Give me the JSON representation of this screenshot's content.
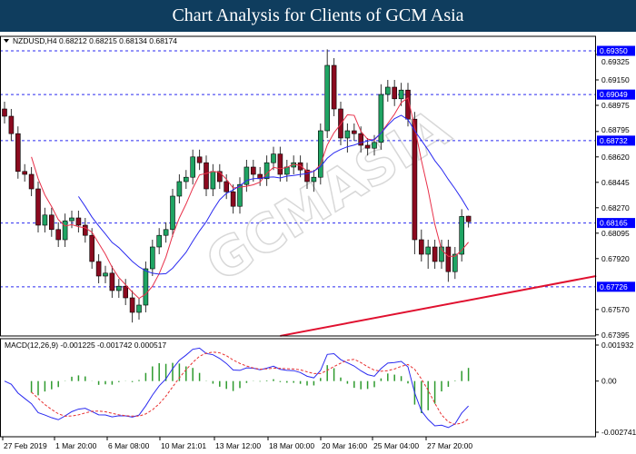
{
  "header": {
    "title": "Chart Analysis for Clients of GCM Asia"
  },
  "watermark": "GCMASIA",
  "chart_data": {
    "type": "candlestick",
    "symbol_info": "NZDUSD,H4  0.68212 0.68215 0.68134 0.68174",
    "colors": {
      "bull": "#1fa463",
      "bear": "#8b0a1f",
      "ma_fast": "#e8314a",
      "ma_slow": "#2a2af0",
      "level": "#2a2af0",
      "trendline": "#e0102f",
      "macd_hist": "#2e9a2e",
      "macd_signal": "#e83030"
    },
    "price_ticks": [
      "0.69325",
      "0.69150",
      "0.68975",
      "0.68795",
      "0.68620",
      "0.68445",
      "0.68270",
      "0.68095",
      "0.67920",
      "0.67570",
      "0.67395"
    ],
    "levels": [
      "0.69350",
      "0.69049",
      "0.68732",
      "0.68165",
      "0.67726"
    ],
    "trendline": {
      "from_index": 41,
      "from_price": 0.67388,
      "to_index": 88,
      "to_price": 0.678
    },
    "x_labels": [
      "27 Feb 2019",
      "1 Mar 20:00",
      "6 Mar 08:00",
      "10 Mar 21:01",
      "13 Mar 12:00",
      "18 Mar 00:00",
      "20 Mar 16:00",
      "25 Mar 04:00",
      "27 Mar 20:00"
    ],
    "ohlc": [
      [
        0.6895,
        0.69,
        0.6885,
        0.689
      ],
      [
        0.689,
        0.6895,
        0.6873,
        0.6878
      ],
      [
        0.6878,
        0.6883,
        0.6847,
        0.6852
      ],
      [
        0.6852,
        0.6857,
        0.6845,
        0.685
      ],
      [
        0.685,
        0.6855,
        0.6835,
        0.684
      ],
      [
        0.684,
        0.6845,
        0.681,
        0.6815
      ],
      [
        0.6815,
        0.6827,
        0.681,
        0.6822
      ],
      [
        0.6822,
        0.6827,
        0.6807,
        0.6812
      ],
      [
        0.6812,
        0.6817,
        0.68,
        0.6805
      ],
      [
        0.6805,
        0.6823,
        0.68,
        0.6818
      ],
      [
        0.6818,
        0.6825,
        0.6813,
        0.682
      ],
      [
        0.682,
        0.6825,
        0.681,
        0.6815
      ],
      [
        0.6815,
        0.682,
        0.6803,
        0.6808
      ],
      [
        0.6808,
        0.6813,
        0.6785,
        0.679
      ],
      [
        0.679,
        0.6795,
        0.6775,
        0.678
      ],
      [
        0.678,
        0.6787,
        0.6775,
        0.6782
      ],
      [
        0.6782,
        0.6787,
        0.6765,
        0.677
      ],
      [
        0.677,
        0.6778,
        0.6765,
        0.6773
      ],
      [
        0.6773,
        0.6778,
        0.676,
        0.6765
      ],
      [
        0.6765,
        0.677,
        0.6748,
        0.6755
      ],
      [
        0.6755,
        0.6765,
        0.675,
        0.676
      ],
      [
        0.676,
        0.679,
        0.6755,
        0.6785
      ],
      [
        0.6785,
        0.6805,
        0.678,
        0.68
      ],
      [
        0.68,
        0.6813,
        0.6795,
        0.6808
      ],
      [
        0.6808,
        0.6817,
        0.6803,
        0.6812
      ],
      [
        0.6812,
        0.684,
        0.6807,
        0.6835
      ],
      [
        0.6835,
        0.685,
        0.683,
        0.6845
      ],
      [
        0.6845,
        0.6853,
        0.684,
        0.6848
      ],
      [
        0.6848,
        0.6867,
        0.6843,
        0.6862
      ],
      [
        0.6862,
        0.6867,
        0.6853,
        0.6858
      ],
      [
        0.6858,
        0.6863,
        0.6835,
        0.684
      ],
      [
        0.684,
        0.6857,
        0.6835,
        0.6852
      ],
      [
        0.6852,
        0.6857,
        0.684,
        0.6845
      ],
      [
        0.6845,
        0.685,
        0.6833,
        0.6838
      ],
      [
        0.6838,
        0.6843,
        0.6823,
        0.6828
      ],
      [
        0.6828,
        0.6848,
        0.6823,
        0.6843
      ],
      [
        0.6843,
        0.686,
        0.6838,
        0.6855
      ],
      [
        0.6855,
        0.686,
        0.6845,
        0.685
      ],
      [
        0.685,
        0.6855,
        0.6842,
        0.6847
      ],
      [
        0.6847,
        0.6863,
        0.6842,
        0.6858
      ],
      [
        0.6858,
        0.6869,
        0.6853,
        0.6864
      ],
      [
        0.6864,
        0.6869,
        0.6845,
        0.685
      ],
      [
        0.685,
        0.686,
        0.6845,
        0.6855
      ],
      [
        0.6855,
        0.6863,
        0.685,
        0.6858
      ],
      [
        0.6858,
        0.6863,
        0.6848,
        0.6853
      ],
      [
        0.6853,
        0.6858,
        0.684,
        0.6845
      ],
      [
        0.6845,
        0.6853,
        0.6838,
        0.6848
      ],
      [
        0.6848,
        0.6885,
        0.6843,
        0.688
      ],
      [
        0.688,
        0.6936,
        0.6875,
        0.6925
      ],
      [
        0.6925,
        0.693,
        0.689,
        0.6895
      ],
      [
        0.6895,
        0.69,
        0.687,
        0.6875
      ],
      [
        0.6875,
        0.6885,
        0.6865,
        0.688
      ],
      [
        0.688,
        0.6885,
        0.6873,
        0.6878
      ],
      [
        0.6878,
        0.6883,
        0.6865,
        0.687
      ],
      [
        0.687,
        0.6875,
        0.6863,
        0.6868
      ],
      [
        0.6868,
        0.6877,
        0.6863,
        0.6872
      ],
      [
        0.6872,
        0.6912,
        0.6867,
        0.6905
      ],
      [
        0.6905,
        0.6915,
        0.69,
        0.691
      ],
      [
        0.691,
        0.6915,
        0.6897,
        0.6902
      ],
      [
        0.6902,
        0.6913,
        0.6897,
        0.6908
      ],
      [
        0.6908,
        0.6913,
        0.6883,
        0.6888
      ],
      [
        0.6888,
        0.6893,
        0.6795,
        0.6805
      ],
      [
        0.6805,
        0.6812,
        0.679,
        0.6795
      ],
      [
        0.6795,
        0.6805,
        0.6785,
        0.68
      ],
      [
        0.68,
        0.6805,
        0.6785,
        0.679
      ],
      [
        0.679,
        0.6805,
        0.6785,
        0.68
      ],
      [
        0.68,
        0.6805,
        0.6776,
        0.6783
      ],
      [
        0.6783,
        0.68,
        0.6778,
        0.6795
      ],
      [
        0.6795,
        0.6826,
        0.679,
        0.6821
      ],
      [
        0.68212,
        0.68215,
        0.68134,
        0.68174
      ]
    ],
    "macd": {
      "label": "MACD(12,26,9) -0.001225 -0.001742 0.000517",
      "ticks": [
        "0.001932",
        "0.00",
        "-0.002741"
      ],
      "range": [
        -0.002741,
        0.001932
      ]
    }
  }
}
